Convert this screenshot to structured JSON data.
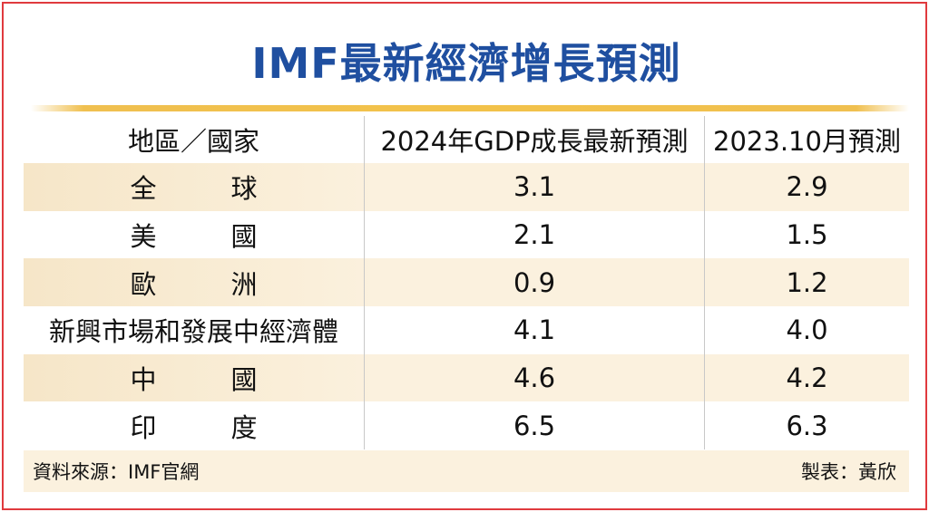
{
  "title": "IMF最新經濟增長預測",
  "chart_data": {
    "type": "table",
    "title": "IMF最新經濟增長預測",
    "columns": [
      "地區／國家",
      "2024年GDP成長最新預測",
      "2023.10月預測"
    ],
    "rows": [
      {
        "region": "全球",
        "chars": [
          "全",
          "球"
        ],
        "latest": "3.1",
        "prev": "2.9"
      },
      {
        "region": "美國",
        "chars": [
          "美",
          "國"
        ],
        "latest": "2.1",
        "prev": "1.5"
      },
      {
        "region": "歐洲",
        "chars": [
          "歐",
          "洲"
        ],
        "latest": "0.9",
        "prev": "1.2"
      },
      {
        "region": "新興市場和發展中經濟體",
        "latest": "4.1",
        "prev": "4.0"
      },
      {
        "region": "中國",
        "chars": [
          "中",
          "國"
        ],
        "latest": "4.6",
        "prev": "4.2"
      },
      {
        "region": "印度",
        "chars": [
          "印",
          "度"
        ],
        "latest": "6.5",
        "prev": "6.3"
      }
    ]
  },
  "footer": {
    "source": "資料來源：IMF官網",
    "credit": "製表：黃欣"
  },
  "colors": {
    "title": "#1f4fa0",
    "border": "#e03a3e",
    "rule": "#f2c24a",
    "shade": "#fbf1de"
  }
}
